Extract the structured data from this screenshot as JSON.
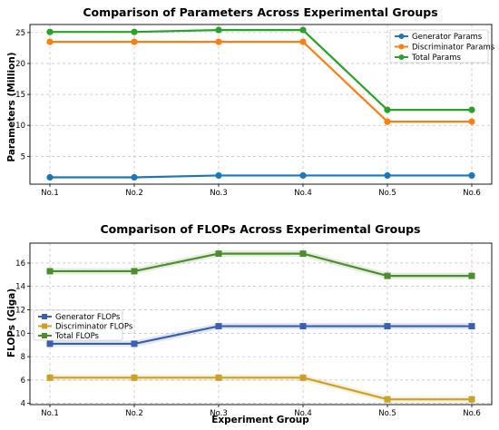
{
  "chart_data": [
    {
      "type": "line",
      "title": "Comparison of Parameters Across Experimental Groups",
      "xlabel": "",
      "ylabel": "Parameters (Million)",
      "categories": [
        "No.1",
        "No.2",
        "No.3",
        "No.4",
        "No.5",
        "No.6"
      ],
      "ylim": [
        0.5,
        26.3
      ],
      "yticks": [
        5,
        10,
        15,
        20,
        25
      ],
      "grid": true,
      "legend": "top-right",
      "marker": "circle",
      "series": [
        {
          "name": "Generator Params",
          "color": "#1f77b4",
          "values": [
            1.6,
            1.6,
            1.9,
            1.9,
            1.9,
            1.9
          ]
        },
        {
          "name": "Discriminator Params",
          "color": "#ff7f0e",
          "values": [
            23.5,
            23.5,
            23.5,
            23.5,
            10.6,
            10.6
          ]
        },
        {
          "name": "Total Params",
          "color": "#2ca02c",
          "values": [
            25.1,
            25.1,
            25.4,
            25.4,
            12.5,
            12.5
          ]
        }
      ]
    },
    {
      "type": "line",
      "title": "Comparison of FLOPs Across Experimental Groups",
      "xlabel": "Experiment Group",
      "ylabel": "FLOPs (Giga)",
      "categories": [
        "No.1",
        "No.2",
        "No.3",
        "No.4",
        "No.5",
        "No.6"
      ],
      "ylim": [
        3.9,
        17.7
      ],
      "yticks": [
        4,
        6,
        8,
        10,
        12,
        14,
        16
      ],
      "grid": true,
      "legend": "center-left",
      "marker": "square",
      "series": [
        {
          "name": "Generator FLOPs",
          "color": "#3b5fb0",
          "values": [
            9.1,
            9.1,
            10.6,
            10.6,
            10.6,
            10.6
          ]
        },
        {
          "name": "Discriminator FLOPs",
          "color": "#c9a227",
          "values": [
            6.2,
            6.2,
            6.2,
            6.2,
            4.35,
            4.35
          ]
        },
        {
          "name": "Total FLOPs",
          "color": "#4e8d2f",
          "values": [
            15.3,
            15.3,
            16.8,
            16.8,
            14.9,
            14.9
          ]
        }
      ]
    }
  ]
}
